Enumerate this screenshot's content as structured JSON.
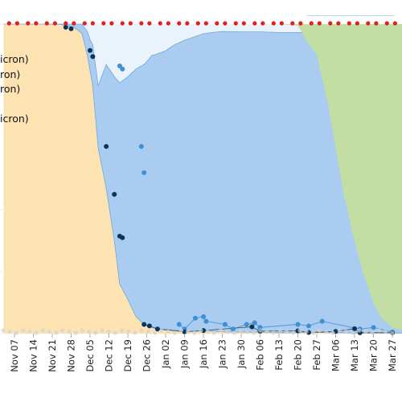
{
  "chart_data": {
    "type": "area",
    "title": "",
    "xlabel": "",
    "ylabel": "",
    "x_ticks": [
      "Nov 07",
      "Nov 14",
      "Nov 21",
      "Nov 28",
      "Dec 05",
      "Dec 12",
      "Dec 19",
      "Dec 26",
      "Jan 02",
      "Jan 09",
      "Jan 16",
      "Jan 23",
      "Jan 30",
      "Feb 06",
      "Feb 13",
      "Feb 20",
      "Feb 27",
      "Mar 06",
      "Mar 13",
      "Mar 20",
      "Mar 27"
    ],
    "ylim": [
      0,
      100
    ],
    "grid": true,
    "legend_position": "top-left",
    "legend_entries": [
      "",
      "",
      "icron)",
      "ron)",
      "ron)",
      "",
      "icron)"
    ],
    "colors": {
      "delta_area": "#fde3b2",
      "omicron_ba1_area": "#a9ccf0",
      "omicron_ba1_1_area": "#eaf3fc",
      "omicron_ba2_area": "#c2dea2",
      "dark_points": "#0b3558",
      "light_points": "#3d8fd6",
      "top_markers": "#e0201c",
      "bottom_points": "#d2d2d2"
    },
    "series": [
      {
        "key": "delta",
        "x": [
          "2021-11-03",
          "2021-11-10",
          "2021-11-17",
          "2021-11-24",
          "2021-11-26",
          "2021-11-29",
          "2021-12-02",
          "2021-12-04",
          "2021-12-06",
          "2021-12-08",
          "2021-12-11",
          "2021-12-14",
          "2021-12-16",
          "2021-12-19",
          "2021-12-22",
          "2021-12-25",
          "2021-12-26",
          "2021-12-29",
          "2022-01-02",
          "2022-01-05",
          "2022-01-09",
          "2022-01-12",
          "2022-01-16",
          "2022-01-23",
          "2022-01-30",
          "2022-02-06",
          "2022-02-13",
          "2022-02-20",
          "2022-02-27",
          "2022-03-06",
          "2022-03-13",
          "2022-03-20",
          "2022-03-27",
          "2022-03-31"
        ],
        "values": [
          100,
          100,
          100,
          99.9,
          99.5,
          99,
          97,
          90,
          80,
          60,
          47,
          30,
          16,
          11,
          5.5,
          3,
          2.5,
          1.7,
          1.4,
          1.2,
          0.8,
          0.7,
          0.9,
          0.6,
          0.5,
          0.5,
          0.3,
          0.3,
          0.4,
          0.3,
          0.2,
          0.2,
          0.2,
          0.2
        ]
      },
      {
        "key": "omicron_ba1",
        "x": [
          "2021-11-03",
          "2021-11-26",
          "2021-11-29",
          "2021-12-02",
          "2021-12-05",
          "2021-12-08",
          "2021-12-11",
          "2021-12-14",
          "2021-12-16",
          "2021-12-19",
          "2021-12-22",
          "2021-12-25",
          "2021-12-28",
          "2022-01-02",
          "2022-01-05",
          "2022-01-09",
          "2022-01-12",
          "2022-01-16",
          "2022-01-19",
          "2022-01-23",
          "2022-01-30",
          "2022-02-06",
          "2022-02-13",
          "2022-02-20",
          "2022-02-27",
          "2022-03-06",
          "2022-03-13",
          "2022-03-20",
          "2022-03-27",
          "2022-03-31"
        ],
        "values": [
          0,
          0.5,
          1,
          3,
          10,
          20,
          40,
          53,
          65,
          72,
          80,
          84,
          88,
          90,
          92,
          94,
          95,
          96,
          96.5,
          97,
          97,
          97,
          97,
          97,
          97,
          97,
          97,
          97,
          97,
          97
        ]
      },
      {
        "key": "omicron_ba2",
        "x": [
          "2021-11-03",
          "2022-02-13",
          "2022-02-20",
          "2022-02-23",
          "2022-02-27",
          "2022-03-03",
          "2022-03-06",
          "2022-03-09",
          "2022-03-13",
          "2022-03-16",
          "2022-03-20",
          "2022-03-23",
          "2022-03-27",
          "2022-03-31"
        ],
        "values": [
          0,
          0,
          0.5,
          5,
          10,
          25,
          40,
          55,
          70,
          80,
          90,
          95,
          98,
          99
        ]
      }
    ],
    "dark_points": {
      "x": [
        "2021-11-26",
        "2021-11-28",
        "2021-12-05",
        "2021-12-06",
        "2021-12-11",
        "2021-12-14",
        "2021-12-16",
        "2021-12-17",
        "2021-12-25",
        "2021-12-27",
        "2021-12-30",
        "2022-01-09",
        "2022-01-16",
        "2022-02-03",
        "2022-02-06",
        "2022-02-20",
        "2022-02-24",
        "2022-03-06",
        "2022-03-13",
        "2022-03-15",
        "2022-03-27"
      ],
      "y": [
        99,
        98.5,
        91.5,
        89.5,
        60.5,
        45,
        31.5,
        31,
        3,
        2.5,
        1.5,
        0.6,
        1,
        2.2,
        0.8,
        0.9,
        0.4,
        0.7,
        1.6,
        0.3,
        0.3
      ]
    },
    "light_points": {
      "x": [
        "2021-12-16",
        "2021-12-17",
        "2021-12-24",
        "2021-12-25",
        "2022-01-07",
        "2022-01-09",
        "2022-01-13",
        "2022-01-16",
        "2022-01-17",
        "2022-01-24",
        "2022-01-27",
        "2022-02-01",
        "2022-02-04",
        "2022-02-06",
        "2022-02-20",
        "2022-02-24",
        "2022-03-01",
        "2022-03-15",
        "2022-03-20",
        "2022-03-27"
      ],
      "y": [
        86.5,
        85.5,
        60.5,
        52,
        3,
        1.5,
        5,
        5.5,
        4,
        3,
        1.5,
        3,
        3.5,
        2,
        3,
        2.5,
        4,
        1.5,
        2,
        0.5
      ]
    },
    "top_markers": {
      "x": [
        "2021-11-05",
        "2021-11-08",
        "2021-11-12",
        "2021-11-15",
        "2021-11-19",
        "2021-11-22",
        "2021-11-26",
        "2021-11-29",
        "2021-12-03",
        "2021-12-06",
        "2021-12-10",
        "2021-12-13",
        "2021-12-17",
        "2021-12-20",
        "2021-12-24",
        "2021-12-27",
        "2021-12-31",
        "2022-01-03",
        "2022-01-07",
        "2022-01-10",
        "2022-01-14",
        "2022-01-17",
        "2022-01-21",
        "2022-01-24",
        "2022-01-28",
        "2022-01-31",
        "2022-02-04",
        "2022-02-07",
        "2022-02-11",
        "2022-02-14",
        "2022-02-18",
        "2022-02-21",
        "2022-02-25",
        "2022-02-28",
        "2022-03-04",
        "2022-03-07",
        "2022-03-11",
        "2022-03-14",
        "2022-03-18",
        "2022-03-21",
        "2022-03-25",
        "2022-03-28"
      ],
      "y": [
        100,
        100,
        100,
        100,
        100,
        100,
        100,
        100,
        100,
        100,
        100,
        100,
        100,
        100,
        100,
        100,
        100,
        100,
        100,
        100,
        100,
        100,
        100,
        100,
        100,
        100,
        100,
        100,
        100,
        100,
        100,
        100,
        100,
        100,
        100,
        100,
        100,
        100,
        100,
        100,
        100,
        100
      ]
    }
  }
}
